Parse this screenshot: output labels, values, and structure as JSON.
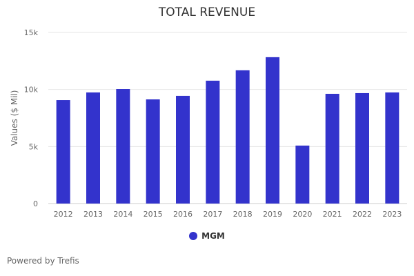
{
  "chart_data": {
    "type": "bar",
    "title": "TOTAL REVENUE",
    "xlabel": "",
    "ylabel": "Values ($ Mil)",
    "ylim": [
      0,
      15000
    ],
    "yticks": [
      0,
      5000,
      10000,
      15000
    ],
    "ytick_labels": [
      "0",
      "5k",
      "10k",
      "15k"
    ],
    "grid": true,
    "legend_position": "bottom",
    "categories": [
      "2012",
      "2013",
      "2014",
      "2015",
      "2016",
      "2017",
      "2018",
      "2019",
      "2020",
      "2021",
      "2022",
      "2023"
    ],
    "series": [
      {
        "name": "MGM",
        "color": "#3333cc",
        "values": [
          9070,
          9740,
          10040,
          9130,
          9440,
          10770,
          11680,
          12830,
          5080,
          9620,
          9680,
          9740
        ]
      }
    ]
  },
  "footer": "Powered by Trefis"
}
